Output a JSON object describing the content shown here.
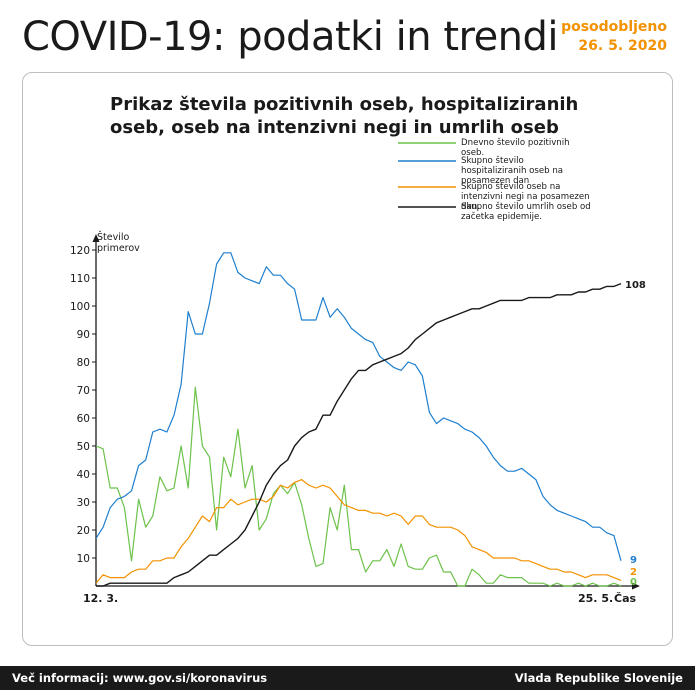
{
  "header": {
    "title": "COVID-19: podatki in trendi",
    "updated_label": "posodobljeno",
    "updated_date": "26. 5. 2020"
  },
  "chart_data": {
    "type": "line",
    "title": "Prikaz števila pozitivnih oseb, hospitaliziranih oseb, oseb na intenzivni negi in umrlih oseb",
    "ylabel": "Število primerov",
    "xlabel": "Čas",
    "x_start_label": "12. 3.",
    "x_end_label": "25. 5.",
    "ylim": [
      0,
      125
    ],
    "yticks": [
      10,
      20,
      30,
      40,
      50,
      60,
      70,
      80,
      90,
      100,
      110,
      120
    ],
    "n_points": 75,
    "colors": {
      "daily": "#6cc24a",
      "hosp": "#1f7fce",
      "icu": "#f39200",
      "deaths": "#1a1a1a"
    },
    "end_labels": {
      "hosp": "9",
      "icu": "2",
      "daily": "0",
      "deaths": "108"
    },
    "series": [
      {
        "key": "daily",
        "name": "Dnevno število pozitivnih oseb.",
        "values": [
          50,
          49,
          35,
          35,
          28,
          9,
          31,
          21,
          25,
          39,
          34,
          35,
          50,
          35,
          71,
          50,
          46,
          20,
          46,
          39,
          56,
          35,
          43,
          20,
          24,
          33,
          36,
          33,
          37,
          29,
          17,
          7,
          8,
          28,
          20,
          36,
          13,
          13,
          5,
          9,
          9,
          13,
          7,
          15,
          7,
          6,
          6,
          10,
          11,
          5,
          5,
          0,
          0,
          6,
          4,
          1,
          1,
          4,
          3,
          3,
          3,
          1,
          1,
          1,
          0,
          1,
          0,
          0,
          1,
          0,
          1,
          0,
          0,
          1,
          0
        ]
      },
      {
        "key": "hosp",
        "name": "Skupno število hospitaliziranih oseb na posamezen dan",
        "values": [
          17,
          21,
          28,
          31,
          32,
          34,
          43,
          45,
          55,
          56,
          55,
          61,
          72,
          98,
          90,
          90,
          101,
          115,
          119,
          119,
          112,
          110,
          109,
          108,
          114,
          111,
          111,
          108,
          106,
          95,
          95,
          95,
          103,
          96,
          99,
          96,
          92,
          90,
          88,
          87,
          82,
          80,
          78,
          77,
          80,
          79,
          75,
          62,
          58,
          60,
          59,
          58,
          56,
          55,
          53,
          50,
          46,
          43,
          41,
          41,
          42,
          40,
          38,
          32,
          29,
          27,
          26,
          25,
          24,
          23,
          21,
          21,
          19,
          18,
          9
        ]
      },
      {
        "key": "icu",
        "name": "Skupno število oseb na intenzivni negi na posamezen dan.",
        "values": [
          1,
          4,
          3,
          3,
          3,
          5,
          6,
          6,
          9,
          9,
          10,
          10,
          14,
          17,
          21,
          25,
          23,
          28,
          28,
          31,
          29,
          30,
          31,
          31,
          30,
          32,
          36,
          35,
          37,
          38,
          36,
          35,
          36,
          35,
          32,
          29,
          28,
          27,
          27,
          26,
          26,
          25,
          26,
          25,
          22,
          25,
          25,
          22,
          21,
          21,
          21,
          20,
          18,
          14,
          13,
          12,
          10,
          10,
          10,
          10,
          9,
          9,
          8,
          7,
          6,
          6,
          5,
          5,
          4,
          3,
          4,
          4,
          4,
          3,
          2
        ]
      },
      {
        "key": "deaths",
        "name": "Skupno število umrlih oseb od začetka epidemije.",
        "values": [
          0,
          0,
          1,
          1,
          1,
          1,
          1,
          1,
          1,
          1,
          1,
          3,
          4,
          5,
          7,
          9,
          11,
          11,
          13,
          15,
          17,
          20,
          25,
          30,
          36,
          40,
          43,
          45,
          50,
          53,
          55,
          56,
          61,
          61,
          66,
          70,
          74,
          77,
          77,
          79,
          80,
          81,
          82,
          83,
          85,
          88,
          90,
          92,
          94,
          95,
          96,
          97,
          98,
          99,
          99,
          100,
          101,
          102,
          102,
          102,
          102,
          103,
          103,
          103,
          103,
          104,
          104,
          104,
          105,
          105,
          106,
          106,
          107,
          107,
          108
        ]
      }
    ],
    "legend_placement": "top-right",
    "grid": false
  },
  "footer": {
    "info": "Več informacij: www.gov.si/koronavirus",
    "source": "Vlada Republike Slovenije"
  }
}
